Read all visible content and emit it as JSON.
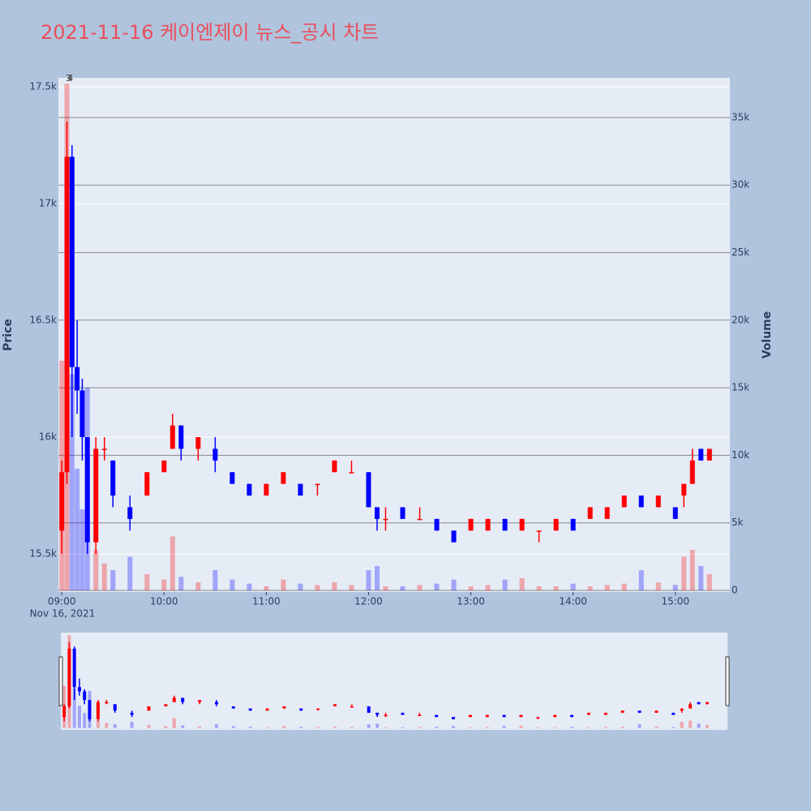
{
  "chart_data": {
    "type": "candlestick",
    "title": "2021-11-16 케이엔제이 뉴스_공시 차트",
    "y_title": "Price",
    "y2_title": "Volume",
    "x_date_label": "Nov 16, 2021",
    "increasing_color": "#ff0000",
    "decreasing_color": "#0000ff",
    "x": [
      "2021-11-16 09:00",
      "2021-11-16 09:03",
      "2021-11-16 09:06",
      "2021-11-16 09:09",
      "2021-11-16 09:12",
      "2021-11-16 09:15",
      "2021-11-16 09:20",
      "2021-11-16 09:25",
      "2021-11-16 09:30",
      "2021-11-16 09:40",
      "2021-11-16 09:50",
      "2021-11-16 10:00",
      "2021-11-16 10:05",
      "2021-11-16 10:10",
      "2021-11-16 10:20",
      "2021-11-16 10:30",
      "2021-11-16 10:40",
      "2021-11-16 10:50",
      "2021-11-16 11:00",
      "2021-11-16 11:10",
      "2021-11-16 11:20",
      "2021-11-16 11:30",
      "2021-11-16 11:40",
      "2021-11-16 11:50",
      "2021-11-16 12:00",
      "2021-11-16 12:05",
      "2021-11-16 12:10",
      "2021-11-16 12:20",
      "2021-11-16 12:30",
      "2021-11-16 12:40",
      "2021-11-16 12:50",
      "2021-11-16 13:00",
      "2021-11-16 13:10",
      "2021-11-16 13:20",
      "2021-11-16 13:30",
      "2021-11-16 13:40",
      "2021-11-16 13:50",
      "2021-11-16 14:00",
      "2021-11-16 14:10",
      "2021-11-16 14:20",
      "2021-11-16 14:30",
      "2021-11-16 14:40",
      "2021-11-16 14:50",
      "2021-11-16 15:00",
      "2021-11-16 15:05",
      "2021-11-16 15:10",
      "2021-11-16 15:15",
      "2021-11-16 15:20"
    ],
    "open": [
      15600,
      15850,
      17200,
      16300,
      16200,
      16000,
      15550,
      15950,
      15900,
      15700,
      15750,
      15850,
      15950,
      16050,
      15950,
      15950,
      15850,
      15800,
      15750,
      15800,
      15800,
      15800,
      15850,
      15850,
      15850,
      15700,
      15650,
      15700,
      15650,
      15650,
      15600,
      15600,
      15600,
      15650,
      15600,
      15600,
      15600,
      15650,
      15650,
      15650,
      15700,
      15750,
      15700,
      15700,
      15750,
      15800,
      15950,
      15900
    ],
    "high": [
      15900,
      17350,
      17250,
      16500,
      16250,
      16000,
      16000,
      16000,
      15900,
      15750,
      15850,
      15900,
      16100,
      16050,
      16000,
      16000,
      15850,
      15800,
      15800,
      15850,
      15800,
      15800,
      15900,
      15900,
      15850,
      15700,
      15700,
      15700,
      15700,
      15650,
      15600,
      15650,
      15650,
      15650,
      15650,
      15600,
      15650,
      15650,
      15700,
      15700,
      15750,
      15750,
      15750,
      15700,
      15800,
      15950,
      15950,
      15950
    ],
    "low": [
      15500,
      15800,
      16000,
      16100,
      15900,
      15500,
      15500,
      15900,
      15700,
      15600,
      15750,
      15850,
      15950,
      15900,
      15900,
      15850,
      15800,
      15750,
      15750,
      15800,
      15750,
      15750,
      15850,
      15850,
      15700,
      15600,
      15600,
      15650,
      15650,
      15600,
      15550,
      15600,
      15600,
      15600,
      15600,
      15550,
      15600,
      15600,
      15650,
      15650,
      15700,
      15700,
      15700,
      15650,
      15700,
      15800,
      15900,
      15900
    ],
    "close": [
      15850,
      17200,
      16300,
      16200,
      16000,
      15550,
      15950,
      15950,
      15750,
      15650,
      15850,
      15900,
      16050,
      15950,
      16000,
      15900,
      15800,
      15750,
      15800,
      15850,
      15750,
      15800,
      15900,
      15850,
      15700,
      15650,
      15650,
      15650,
      15650,
      15600,
      15550,
      15650,
      15650,
      15600,
      15650,
      15600,
      15650,
      15600,
      15700,
      15700,
      15750,
      15700,
      15750,
      15650,
      15800,
      15900,
      15900,
      15950
    ],
    "volume": [
      17000,
      37500,
      16000,
      9000,
      6000,
      15000,
      3000,
      2000,
      1500,
      2500,
      1200,
      800,
      4000,
      1000,
      600,
      1500,
      800,
      500,
      300,
      800,
      500,
      400,
      600,
      400,
      1500,
      1800,
      300,
      300,
      400,
      500,
      800,
      300,
      400,
      800,
      900,
      300,
      300,
      500,
      300,
      400,
      500,
      1500,
      600,
      400,
      2500,
      3000,
      1800,
      1200
    ],
    "xlim": [
      "2021-11-16 08:58",
      "2021-11-16 15:32"
    ],
    "xticks": [
      {
        "value": "2021-11-16 09:00",
        "label": "09:00"
      },
      {
        "value": "2021-11-16 10:00",
        "label": "10:00"
      },
      {
        "value": "2021-11-16 11:00",
        "label": "11:00"
      },
      {
        "value": "2021-11-16 12:00",
        "label": "12:00"
      },
      {
        "value": "2021-11-16 13:00",
        "label": "13:00"
      },
      {
        "value": "2021-11-16 14:00",
        "label": "14:00"
      },
      {
        "value": "2021-11-16 15:00",
        "label": "15:00"
      }
    ],
    "ylim": [
      15337,
      17538
    ],
    "yticks": [
      {
        "value": 15500,
        "label": "15.5k"
      },
      {
        "value": 16000,
        "label": "16k"
      },
      {
        "value": 16500,
        "label": "16.5k"
      },
      {
        "value": 17000,
        "label": "17k"
      },
      {
        "value": 17500,
        "label": "17.5k"
      }
    ],
    "y2lim": [
      -120,
      37935
    ],
    "y2ticks": [
      0,
      {
        "value": 5000,
        "label": "5k"
      },
      {
        "value": 10000,
        "label": "10k"
      },
      {
        "value": 15000,
        "label": "15k"
      },
      {
        "value": 20000,
        "label": "20k"
      },
      {
        "value": 25000,
        "label": "25k"
      },
      {
        "value": 30000,
        "label": "30k"
      },
      {
        "value": 35000,
        "label": "35k"
      }
    ],
    "annotations": [
      {
        "x": "2021-11-16 09:04",
        "text": "3"
      },
      {
        "x": "2021-11-16 09:05",
        "text": "4"
      }
    ]
  }
}
